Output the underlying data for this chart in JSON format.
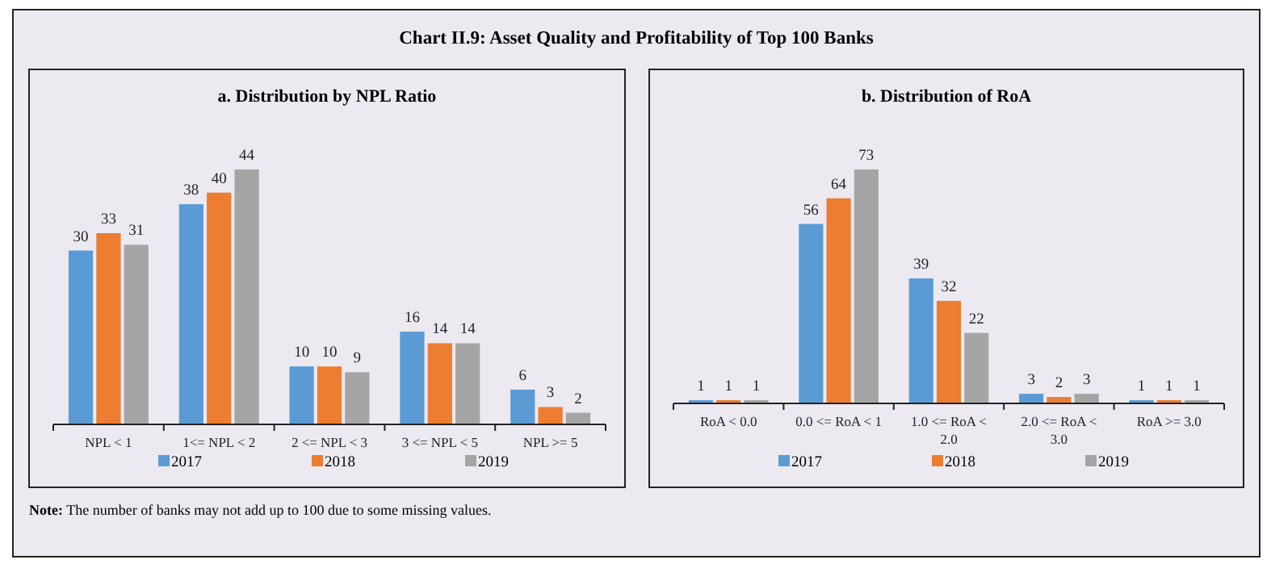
{
  "chart_data": [
    {
      "type": "bar",
      "title": "a. Distribution by NPL Ratio",
      "annotations": [
        "Chart II.9: Asset Quality and Profitability of Top 100 Banks",
        "Note: The number of banks may not add up to 100 due to some missing values."
      ],
      "categories": [
        "NPL < 1",
        "1<= NPL < 2",
        "2 <= NPL < 3",
        "3 <= NPL < 5",
        "NPL >= 5"
      ],
      "series": [
        {
          "name": "2017",
          "color": "#5b9bd5",
          "values": [
            30,
            38,
            10,
            16,
            6
          ]
        },
        {
          "name": "2018",
          "color": "#ed7d31",
          "values": [
            33,
            40,
            10,
            14,
            3
          ]
        },
        {
          "name": "2019",
          "color": "#a5a5a5",
          "values": [
            31,
            44,
            9,
            14,
            2
          ]
        }
      ],
      "data_labels": true,
      "legend": "bottom"
    },
    {
      "type": "bar",
      "title": "b. Distribution of  RoA",
      "categories": [
        "RoA < 0.0",
        "0.0 <= RoA < 1",
        "1.0 <= RoA < 2.0",
        "2.0 <= RoA < 3.0",
        "RoA >= 3.0"
      ],
      "series": [
        {
          "name": "2017",
          "color": "#5b9bd5",
          "values": [
            1,
            56,
            39,
            3,
            1
          ]
        },
        {
          "name": "2018",
          "color": "#ed7d31",
          "values": [
            1,
            64,
            32,
            2,
            1
          ]
        },
        {
          "name": "2019",
          "color": "#a5a5a5",
          "values": [
            1,
            73,
            22,
            3,
            1
          ]
        }
      ],
      "data_labels": true,
      "legend": "bottom"
    }
  ]
}
